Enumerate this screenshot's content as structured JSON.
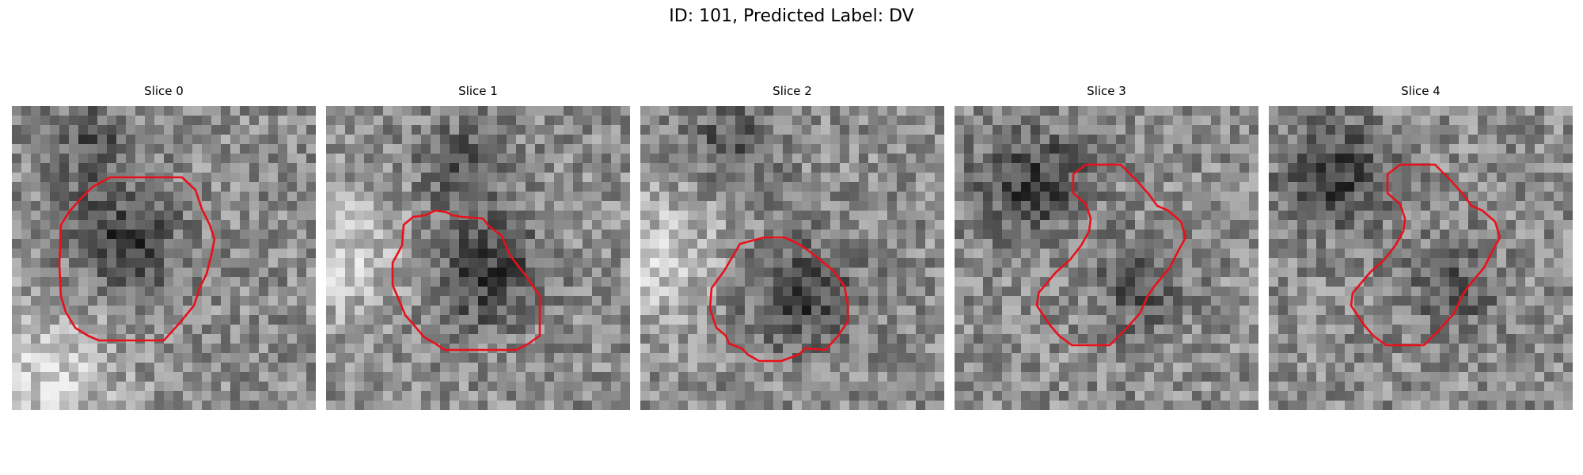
{
  "figure": {
    "title": "ID: 101, Predicted Label: DV"
  },
  "panels": [
    {
      "title": "Slice 0",
      "dark_blob": [
        0.37,
        0.45
      ],
      "dark2": [
        0.25,
        0.12
      ],
      "bright_corner": "bottom-left"
    },
    {
      "title": "Slice 1",
      "dark_blob": [
        0.52,
        0.55
      ],
      "dark2": [
        0.45,
        0.2
      ],
      "bright_corner": "left"
    },
    {
      "title": "Slice 2",
      "dark_blob": [
        0.52,
        0.62
      ],
      "dark2": [
        0.3,
        0.12
      ],
      "bright_corner": "left"
    },
    {
      "title": "Slice 3",
      "dark_blob": [
        0.25,
        0.25
      ],
      "dark2": [
        0.6,
        0.6
      ],
      "bright_corner": "none"
    },
    {
      "title": "Slice 4",
      "dark_blob": [
        0.22,
        0.22
      ],
      "dark2": [
        0.6,
        0.6
      ],
      "bright_corner": "none"
    }
  ],
  "colors": {
    "contour": "#e8111b"
  }
}
